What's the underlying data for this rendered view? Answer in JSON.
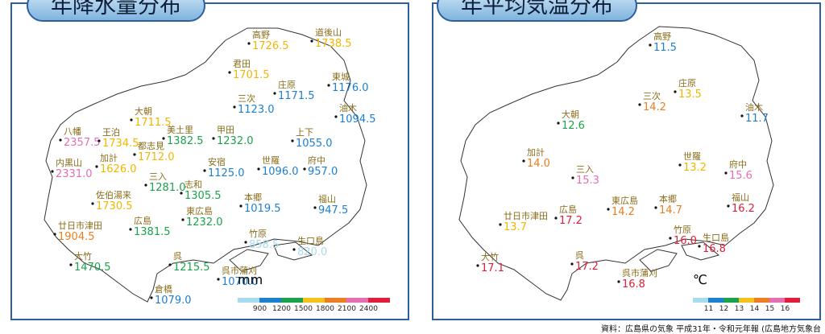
{
  "left_panel": {
    "title": "年降水量分布",
    "unit": "mm",
    "legend_ticks": [
      "900",
      "1200",
      "1500",
      "1800",
      "2100",
      "2400"
    ],
    "legend_colors": [
      "#a8dbf0",
      "#1c7fd0",
      "#19a34a",
      "#f2c21b",
      "#ec7d22",
      "#e46fb3",
      "#e11d3a"
    ],
    "stations": [
      {
        "name": "高野",
        "value": "1726.5",
        "color": "#f2b600"
      },
      {
        "name": "道後山",
        "value": "1738.5",
        "color": "#f2b600"
      },
      {
        "name": "君田",
        "value": "1701.5",
        "color": "#f2b600"
      },
      {
        "name": "庄原",
        "value": "1171.5",
        "color": "#1c7fd0"
      },
      {
        "name": "東城",
        "value": "1176.0",
        "color": "#1c7fd0"
      },
      {
        "name": "三次",
        "value": "1123.0",
        "color": "#1c7fd0"
      },
      {
        "name": "油木",
        "value": "1094.5",
        "color": "#1c7fd0"
      },
      {
        "name": "大朝",
        "value": "1711.5",
        "color": "#f2b600"
      },
      {
        "name": "美土里",
        "value": "1382.5",
        "color": "#19a34a"
      },
      {
        "name": "甲田",
        "value": "1232.0",
        "color": "#19a34a"
      },
      {
        "name": "上下",
        "value": "1055.0",
        "color": "#1c7fd0"
      },
      {
        "name": "八幡",
        "value": "2357.5",
        "color": "#e46fb3"
      },
      {
        "name": "王泊",
        "value": "1734.5",
        "color": "#f2b600"
      },
      {
        "name": "都志見",
        "value": "1712.0",
        "color": "#f2b600"
      },
      {
        "name": "内黒山",
        "value": "2331.0",
        "color": "#e46fb3"
      },
      {
        "name": "加計",
        "value": "1626.0",
        "color": "#f2b600"
      },
      {
        "name": "安宿",
        "value": "1125.0",
        "color": "#1c7fd0"
      },
      {
        "name": "世羅",
        "value": "1096.0",
        "color": "#1c7fd0"
      },
      {
        "name": "府中",
        "value": "957.0",
        "color": "#1c7fd0"
      },
      {
        "name": "三入",
        "value": "1281.0",
        "color": "#19a34a"
      },
      {
        "name": "志和",
        "value": "1305.5",
        "color": "#19a34a"
      },
      {
        "name": "佐伯湯来",
        "value": "1730.5",
        "color": "#f2b600"
      },
      {
        "name": "本郷",
        "value": "1019.5",
        "color": "#1c7fd0"
      },
      {
        "name": "福山",
        "value": "947.5",
        "color": "#1c7fd0"
      },
      {
        "name": "東広島",
        "value": "1232.0",
        "color": "#19a34a"
      },
      {
        "name": "広島",
        "value": "1381.5",
        "color": "#19a34a"
      },
      {
        "name": "廿日市津田",
        "value": "1904.5",
        "color": "#ec7d22"
      },
      {
        "name": "竹原",
        "value": "858.5",
        "color": "#a8dbf0"
      },
      {
        "name": "生口島",
        "value": "820.0",
        "color": "#a8dbf0"
      },
      {
        "name": "大竹",
        "value": "1470.5",
        "color": "#19a34a"
      },
      {
        "name": "呉",
        "value": "1215.5",
        "color": "#19a34a"
      },
      {
        "name": "呉市蒲刈",
        "value": "1070.0",
        "color": "#1c7fd0"
      },
      {
        "name": "倉橋",
        "value": "1079.0",
        "color": "#1c7fd0"
      }
    ]
  },
  "right_panel": {
    "title": "年平均気温分布",
    "unit": "℃",
    "legend_ticks": [
      "11",
      "12",
      "13",
      "14",
      "15",
      "16"
    ],
    "legend_colors": [
      "#a8dbf0",
      "#1c7fd0",
      "#19a34a",
      "#f2c21b",
      "#ec7d22",
      "#e46fb3",
      "#e11d3a"
    ],
    "stations": [
      {
        "name": "高野",
        "value": "11.5",
        "color": "#1c7fd0"
      },
      {
        "name": "庄原",
        "value": "13.5",
        "color": "#f2b600"
      },
      {
        "name": "三次",
        "value": "14.2",
        "color": "#ec7d22"
      },
      {
        "name": "油木",
        "value": "11.7",
        "color": "#1c7fd0"
      },
      {
        "name": "大朝",
        "value": "12.6",
        "color": "#19a34a"
      },
      {
        "name": "加計",
        "value": "14.0",
        "color": "#ec7d22"
      },
      {
        "name": "三入",
        "value": "15.3",
        "color": "#e46fb3"
      },
      {
        "name": "世羅",
        "value": "13.2",
        "color": "#f2b600"
      },
      {
        "name": "府中",
        "value": "15.6",
        "color": "#e46fb3"
      },
      {
        "name": "東広島",
        "value": "14.2",
        "color": "#ec7d22"
      },
      {
        "name": "本郷",
        "value": "14.7",
        "color": "#ec7d22"
      },
      {
        "name": "福山",
        "value": "16.2",
        "color": "#e11d3a"
      },
      {
        "name": "廿日市津田",
        "value": "13.7",
        "color": "#f2b600"
      },
      {
        "name": "広島",
        "value": "17.2",
        "color": "#e11d3a"
      },
      {
        "name": "竹原",
        "value": "16.0",
        "color": "#e11d3a"
      },
      {
        "name": "生口島",
        "value": "16.8",
        "color": "#e11d3a"
      },
      {
        "name": "大竹",
        "value": "17.1",
        "color": "#e11d3a"
      },
      {
        "name": "呉",
        "value": "17.2",
        "color": "#e11d3a"
      },
      {
        "name": "呉市蒲刈",
        "value": "16.8",
        "color": "#e11d3a"
      }
    ]
  },
  "source": "資料：広島県の気象 平成31年・令和元年報 (広島地方気象台"
}
